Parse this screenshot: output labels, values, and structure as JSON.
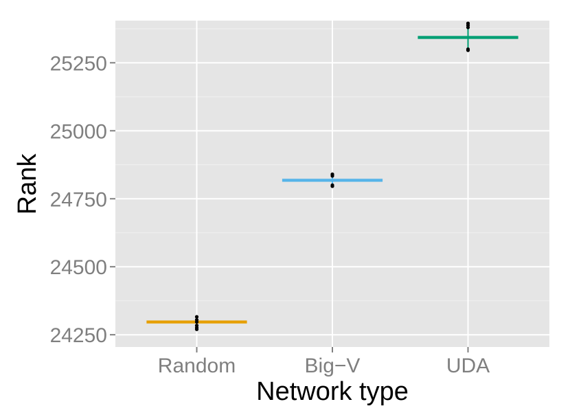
{
  "chart_data": {
    "type": "scatter",
    "xlabel": "Network type",
    "ylabel": "Rank",
    "categories": [
      "Random",
      "Big−V",
      "UDA"
    ],
    "ylim": [
      24205,
      25405
    ],
    "yticks": [
      24250,
      24500,
      24750,
      25000,
      25250
    ],
    "grid": true,
    "legend": "none",
    "series": [
      {
        "category": "Random",
        "color": "#E69F00",
        "mean": 24297,
        "error": [
          24272,
          24316
        ],
        "points": [
          24270,
          24276,
          24284,
          24297,
          24305,
          24316
        ]
      },
      {
        "category": "Big−V",
        "color": "#56B4E9",
        "mean": 24818,
        "error": [
          24796,
          24840
        ],
        "points": [
          24796,
          24800,
          24834,
          24840
        ]
      },
      {
        "category": "UDA",
        "color": "#009E73",
        "mean": 25343,
        "error": [
          25296,
          25395
        ],
        "points": [
          25296,
          25300,
          25380,
          25388,
          25395
        ]
      }
    ]
  }
}
